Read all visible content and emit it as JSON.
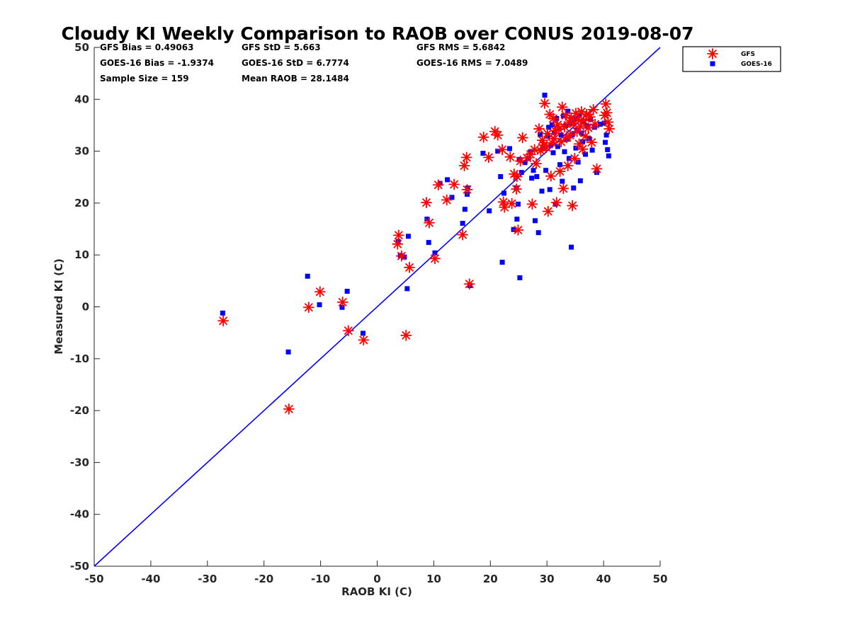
{
  "colors": {
    "gfs": "#ff0000",
    "goes16": "#0000ff",
    "one_to_one_line": "#0000ff",
    "axis": "#262626"
  },
  "stats": {
    "gfs_bias": "GFS Bias = 0.49063",
    "goes_bias": "GOES-16 Bias = -1.9374",
    "sample_size": "Sample Size = 159",
    "gfs_std": "GFS StD = 5.663",
    "goes_std": "GOES-16 StD = 6.7774",
    "mean_raob": "Mean RAOB = 28.1484",
    "gfs_rms": "GFS RMS = 5.6842",
    "goes_rms": "GOES-16 RMS = 7.0489"
  },
  "chart_data": {
    "type": "scatter",
    "title": "Cloudy KI Weekly Comparison to RAOB over CONUS 2019-08-07",
    "xlabel": "RAOB KI (C)",
    "ylabel": "Measured KI (C)",
    "xlim": [
      -50,
      50
    ],
    "ylim": [
      -50,
      50
    ],
    "xticks": [
      -50,
      -40,
      -30,
      -20,
      -10,
      0,
      10,
      20,
      30,
      40,
      50
    ],
    "yticks": [
      -50,
      -40,
      -30,
      -20,
      -10,
      0,
      10,
      20,
      30,
      40,
      50
    ],
    "grid": false,
    "legend_position": "top-right, outside plot",
    "reference_line": {
      "from": [
        -50,
        -50
      ],
      "to": [
        50,
        50
      ]
    },
    "series": [
      {
        "name": "GFS",
        "marker": "asterisk",
        "points": [
          [
            -27.2,
            -2.7
          ],
          [
            -15.6,
            -19.7
          ],
          [
            -12.1,
            -0.1
          ],
          [
            -10.1,
            2.9
          ],
          [
            -6.1,
            0.9
          ],
          [
            -5.1,
            -4.6
          ],
          [
            -2.4,
            -6.4
          ],
          [
            4.3,
            9.8
          ],
          [
            3.8,
            13.8
          ],
          [
            3.6,
            12.1
          ],
          [
            5.1,
            -5.5
          ],
          [
            5.7,
            7.6
          ],
          [
            9.2,
            16.2
          ],
          [
            8.7,
            20.1
          ],
          [
            10.2,
            9.3
          ],
          [
            10.8,
            23.5
          ],
          [
            12.3,
            20.6
          ],
          [
            13.6,
            23.6
          ],
          [
            15.1,
            13.9
          ],
          [
            15.4,
            27.2
          ],
          [
            15.8,
            28.8
          ],
          [
            15.9,
            22.6
          ],
          [
            16.3,
            4.4
          ],
          [
            18.8,
            32.7
          ],
          [
            19.7,
            28.8
          ],
          [
            20.8,
            33.8
          ],
          [
            21.3,
            33.1
          ],
          [
            22.1,
            30.3
          ],
          [
            22.3,
            20.2
          ],
          [
            22.5,
            19.2
          ],
          [
            23.5,
            28.9
          ],
          [
            23.8,
            19.9
          ],
          [
            24.2,
            25.6
          ],
          [
            24.6,
            22.7
          ],
          [
            24.7,
            25.1
          ],
          [
            24.9,
            14.8
          ],
          [
            25.3,
            28.1
          ],
          [
            25.7,
            32.6
          ],
          [
            26.5,
            28.7
          ],
          [
            27.1,
            29.4
          ],
          [
            27.4,
            19.8
          ],
          [
            27.8,
            30.3
          ],
          [
            28.1,
            27.6
          ],
          [
            28.6,
            34.3
          ],
          [
            28.9,
            30.1
          ],
          [
            29.2,
            32.1
          ],
          [
            29.4,
            31.2
          ],
          [
            29.6,
            39.2
          ],
          [
            29.9,
            30.7
          ],
          [
            30.1,
            33.4
          ],
          [
            30.2,
            18.4
          ],
          [
            30.5,
            37.1
          ],
          [
            30.7,
            25.2
          ],
          [
            30.9,
            31.6
          ],
          [
            31.1,
            36.3
          ],
          [
            31.3,
            32.4
          ],
          [
            31.5,
            33.9
          ],
          [
            31.7,
            20.1
          ],
          [
            31.9,
            35.1
          ],
          [
            32.1,
            34.2
          ],
          [
            32.3,
            26.1
          ],
          [
            32.5,
            31.8
          ],
          [
            32.7,
            38.5
          ],
          [
            32.9,
            22.8
          ],
          [
            33.1,
            34.7
          ],
          [
            33.3,
            36.9
          ],
          [
            33.5,
            32.6
          ],
          [
            33.7,
            27.2
          ],
          [
            33.9,
            35.6
          ],
          [
            34.1,
            33.1
          ],
          [
            34.3,
            36.4
          ],
          [
            34.5,
            19.5
          ],
          [
            34.7,
            35.3
          ],
          [
            34.9,
            28.6
          ],
          [
            35.1,
            37.3
          ],
          [
            35.3,
            33.8
          ],
          [
            35.5,
            36.1
          ],
          [
            35.7,
            31.4
          ],
          [
            35.9,
            34.8
          ],
          [
            36.1,
            37.6
          ],
          [
            36.3,
            30.4
          ],
          [
            36.5,
            35.9
          ],
          [
            36.8,
            32.9
          ],
          [
            37.0,
            37.1
          ],
          [
            37.3,
            34.5
          ],
          [
            37.6,
            36.6
          ],
          [
            37.9,
            31.7
          ],
          [
            38.2,
            38.0
          ],
          [
            38.5,
            35.2
          ],
          [
            38.8,
            26.6
          ],
          [
            40.2,
            36.9
          ],
          [
            40.4,
            39.1
          ],
          [
            40.6,
            37.4
          ],
          [
            40.8,
            35.6
          ],
          [
            41.0,
            34.3
          ]
        ]
      },
      {
        "name": "GOES-16",
        "marker": "square",
        "points": [
          [
            -27.3,
            -1.2
          ],
          [
            -15.7,
            -8.7
          ],
          [
            -12.3,
            5.9
          ],
          [
            -10.2,
            0.4
          ],
          [
            -6.2,
            -0.1
          ],
          [
            -5.3,
            3.0
          ],
          [
            -2.5,
            -5.1
          ],
          [
            3.7,
            12.6
          ],
          [
            4.1,
            9.9
          ],
          [
            4.8,
            9.6
          ],
          [
            5.3,
            3.5
          ],
          [
            5.5,
            13.6
          ],
          [
            9.1,
            12.4
          ],
          [
            8.8,
            16.9
          ],
          [
            10.2,
            10.4
          ],
          [
            11.1,
            23.8
          ],
          [
            12.4,
            24.5
          ],
          [
            13.2,
            21.1
          ],
          [
            15.1,
            16.1
          ],
          [
            15.5,
            18.8
          ],
          [
            15.9,
            21.7
          ],
          [
            16.0,
            22.9
          ],
          [
            16.4,
            4.1
          ],
          [
            18.7,
            29.6
          ],
          [
            19.8,
            18.5
          ],
          [
            21.3,
            30.0
          ],
          [
            21.8,
            25.1
          ],
          [
            22.1,
            8.6
          ],
          [
            22.4,
            21.9
          ],
          [
            23.4,
            30.5
          ],
          [
            24.1,
            14.9
          ],
          [
            24.6,
            22.9
          ],
          [
            24.7,
            16.9
          ],
          [
            24.9,
            19.8
          ],
          [
            25.1,
            28.4
          ],
          [
            25.2,
            5.6
          ],
          [
            25.5,
            25.9
          ],
          [
            26.1,
            27.8
          ],
          [
            26.7,
            28.6
          ],
          [
            27.1,
            29.9
          ],
          [
            27.3,
            24.8
          ],
          [
            27.6,
            26.3
          ],
          [
            27.9,
            16.6
          ],
          [
            28.2,
            25.1
          ],
          [
            28.5,
            14.3
          ],
          [
            28.8,
            33.2
          ],
          [
            29.1,
            22.3
          ],
          [
            29.4,
            30.6
          ],
          [
            29.6,
            40.8
          ],
          [
            29.8,
            26.3
          ],
          [
            30.1,
            32.9
          ],
          [
            30.3,
            34.6
          ],
          [
            30.5,
            22.6
          ],
          [
            30.7,
            31.2
          ],
          [
            30.9,
            35.1
          ],
          [
            31.1,
            29.7
          ],
          [
            31.3,
            33.6
          ],
          [
            31.5,
            19.8
          ],
          [
            31.7,
            36.3
          ],
          [
            31.9,
            30.9
          ],
          [
            32.1,
            34.4
          ],
          [
            32.3,
            27.4
          ],
          [
            32.5,
            33.1
          ],
          [
            32.7,
            24.2
          ],
          [
            32.9,
            36.8
          ],
          [
            33.1,
            29.9
          ],
          [
            33.3,
            34.9
          ],
          [
            33.5,
            32.3
          ],
          [
            33.7,
            37.7
          ],
          [
            33.9,
            28.6
          ],
          [
            34.1,
            35.4
          ],
          [
            34.3,
            11.5
          ],
          [
            34.5,
            33.2
          ],
          [
            34.7,
            22.9
          ],
          [
            34.9,
            36.2
          ],
          [
            35.1,
            30.6
          ],
          [
            35.3,
            34.1
          ],
          [
            35.5,
            27.9
          ],
          [
            35.7,
            36.9
          ],
          [
            35.9,
            24.3
          ],
          [
            36.1,
            33.5
          ],
          [
            36.3,
            31.8
          ],
          [
            36.5,
            35.7
          ],
          [
            36.8,
            29.4
          ],
          [
            37.1,
            34.8
          ],
          [
            37.4,
            32.4
          ],
          [
            37.7,
            36.1
          ],
          [
            38.0,
            30.2
          ],
          [
            38.4,
            34.6
          ],
          [
            38.8,
            25.9
          ],
          [
            39.4,
            35.2
          ],
          [
            40.1,
            35.4
          ],
          [
            40.3,
            31.7
          ],
          [
            40.5,
            33.1
          ],
          [
            40.7,
            30.3
          ],
          [
            40.9,
            29.1
          ]
        ]
      }
    ]
  }
}
